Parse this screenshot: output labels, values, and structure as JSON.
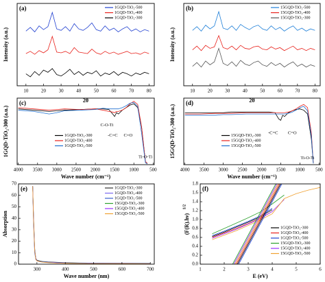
{
  "chart_data": [
    {
      "type": "line",
      "panel_label": "(a)",
      "xlabel": "2θ",
      "ylabel": "Intensity (a.u.)",
      "xlim": [
        5,
        83
      ],
      "ylim": [
        0,
        11
      ],
      "xticks": [
        10,
        20,
        30,
        40,
        50,
        60,
        70,
        80
      ],
      "legend": "upper right",
      "x": [
        10,
        12.5,
        15,
        17.5,
        20,
        22.5,
        25,
        27.5,
        30,
        32.5,
        35,
        37.5,
        40,
        42.5,
        45,
        47.5,
        50,
        52.5,
        55,
        57.5,
        60,
        62.5,
        65,
        67.5,
        70,
        72.5,
        75,
        77.5,
        80
      ],
      "series": [
        {
          "name": "1GQD-TiO₂-500",
          "color": "#1f3fd0",
          "values": [
            7.3,
            7.8,
            7.2,
            8.0,
            7.5,
            7.9,
            9.8,
            7.6,
            7.4,
            7.9,
            7.3,
            8.3,
            7.6,
            7.4,
            7.8,
            8.4,
            7.5,
            7.3,
            8.0,
            7.4,
            7.7,
            7.2,
            7.6,
            7.9,
            7.3,
            7.6,
            7.2,
            7.5,
            7.3
          ]
        },
        {
          "name": "1GQD-TiO₂-400",
          "color": "#e8201a",
          "values": [
            4.3,
            4.6,
            4.2,
            4.7,
            4.4,
            4.8,
            6.6,
            4.5,
            4.4,
            4.6,
            4.3,
            5.1,
            4.5,
            4.4,
            4.3,
            4.9,
            4.4,
            4.2,
            4.6,
            4.3,
            4.5,
            4.2,
            4.4,
            4.6,
            4.3,
            4.4,
            4.2,
            4.5,
            4.3
          ]
        },
        {
          "name": "1GQD-TiO₂-300",
          "color": "#000000",
          "values": [
            1.6,
            1.2,
            1.9,
            1.4,
            2.1,
            1.8,
            2.3,
            1.5,
            1.3,
            1.7,
            2.2,
            1.5,
            1.9,
            1.4,
            1.8,
            1.6,
            2.0,
            1.3,
            1.7,
            1.5,
            1.9,
            1.4,
            1.8,
            1.6,
            1.3,
            1.7,
            1.5,
            1.8,
            1.6
          ]
        }
      ]
    },
    {
      "type": "line",
      "panel_label": "(b)",
      "xlabel": "2θ",
      "ylabel": "Intensity (a.u.)",
      "xlim": [
        5,
        83
      ],
      "ylim": [
        0,
        11
      ],
      "xticks": [
        10,
        20,
        30,
        40,
        50,
        60,
        70,
        80
      ],
      "legend": "upper right",
      "x": [
        10,
        12.5,
        15,
        17.5,
        20,
        22.5,
        25,
        27.5,
        30,
        32.5,
        35,
        37.5,
        40,
        42.5,
        45,
        47.5,
        50,
        52.5,
        55,
        57.5,
        60,
        62.5,
        65,
        67.5,
        70,
        72.5,
        75,
        77.5,
        80
      ],
      "series": [
        {
          "name": "15GQD-TiO₂-500",
          "color": "#1e7fd8",
          "values": [
            7.4,
            7.9,
            7.3,
            8.1,
            7.6,
            8.0,
            9.9,
            7.7,
            7.5,
            8.0,
            7.4,
            8.2,
            7.8,
            7.5,
            7.9,
            8.1,
            7.6,
            7.4,
            8.0,
            7.5,
            7.8,
            7.3,
            7.7,
            8.0,
            7.4,
            7.7,
            7.3,
            7.6,
            7.4
          ]
        },
        {
          "name": "15GQD-TiO₂-400",
          "color": "#e8201a",
          "values": [
            4.8,
            5.3,
            4.7,
            5.4,
            5.0,
            5.2,
            6.7,
            5.1,
            4.9,
            5.3,
            4.8,
            5.4,
            5.0,
            4.9,
            5.2,
            5.3,
            4.9,
            4.8,
            5.2,
            4.9,
            5.1,
            4.7,
            5.0,
            5.3,
            4.8,
            5.0,
            4.7,
            5.0,
            4.8
          ]
        },
        {
          "name": "15GQD-TiO₂-300",
          "color": "#555555",
          "values": [
            2.6,
            3.1,
            2.5,
            3.3,
            2.8,
            3.2,
            5.0,
            3.0,
            2.7,
            3.2,
            2.6,
            3.4,
            2.9,
            2.7,
            3.1,
            3.3,
            2.8,
            2.6,
            3.1,
            2.7,
            3.0,
            2.5,
            2.9,
            3.2,
            2.6,
            2.9,
            2.5,
            2.8,
            2.6
          ]
        }
      ]
    },
    {
      "type": "line",
      "panel_label": "(c)",
      "xlabel": "Wave number (cm⁻¹)",
      "ylabel": "1GQD-TiO₂-300 (a.u.)",
      "xlim": [
        4030,
        470
      ],
      "ylim": [
        0,
        105
      ],
      "xticks": [
        4000,
        3500,
        3000,
        2500,
        2000,
        1500,
        1000,
        500
      ],
      "legend": "lower left",
      "x": [
        4000,
        3600,
        3200,
        3000,
        2800,
        2400,
        2000,
        1800,
        1650,
        1550,
        1500,
        1450,
        1400,
        1300,
        1200,
        1100,
        1000,
        900,
        800,
        700,
        650
      ],
      "series": [
        {
          "name": "1GQD-TiO₂-300",
          "color": "#000000",
          "values": [
            88,
            86,
            84,
            85,
            86,
            87,
            88,
            88,
            87,
            80,
            76,
            82,
            80,
            86,
            90,
            94,
            96,
            90,
            60,
            5,
            2
          ]
        },
        {
          "name": "1GQD-TiO₂-400",
          "color": "#e8201a",
          "values": [
            90,
            88,
            86,
            87,
            88,
            87,
            88,
            86,
            84,
            83,
            82,
            84,
            84,
            86,
            90,
            96,
            100,
            95,
            60,
            5,
            2
          ]
        },
        {
          "name": "1GQD-TiO₂-500",
          "color": "#1f6fd0",
          "values": [
            86,
            84,
            80,
            82,
            85,
            86,
            87,
            89,
            88,
            88,
            88,
            88,
            88,
            90,
            93,
            97,
            98,
            92,
            50,
            3,
            1
          ]
        }
      ],
      "annotations": [
        "C-O-Ti",
        "-C=C",
        "C=O",
        "Ti-O-Ti"
      ]
    },
    {
      "type": "line",
      "panel_label": "(d)",
      "xlabel": "Wave number (cm⁻¹)",
      "ylabel": "15GQD-TiO₂-300 (a.u.)",
      "xlim": [
        4030,
        470
      ],
      "ylim": [
        0,
        105
      ],
      "xticks": [
        4000,
        3500,
        3000,
        2500,
        2000,
        1500,
        1000,
        500
      ],
      "legend": "lower left",
      "x": [
        4000,
        3600,
        3200,
        3000,
        2800,
        2400,
        2000,
        1800,
        1650,
        1550,
        1500,
        1450,
        1400,
        1300,
        1200,
        1100,
        1000,
        900,
        800,
        700,
        650
      ],
      "series": [
        {
          "name": "15GQD-TiO₂-300",
          "color": "#000000",
          "values": [
            82,
            82,
            82,
            82,
            83,
            83,
            83,
            83,
            82,
            72,
            70,
            78,
            76,
            82,
            85,
            87,
            88,
            86,
            80,
            40,
            2
          ]
        },
        {
          "name": "15GQD-TiO₂-400",
          "color": "#e8201a",
          "values": [
            80,
            80,
            81,
            81,
            81,
            82,
            82,
            82,
            82,
            82,
            82,
            82,
            82,
            83,
            85,
            88,
            92,
            95,
            90,
            50,
            3
          ]
        },
        {
          "name": "15GQD-TiO₂-500",
          "color": "#1f6fd0",
          "values": [
            78,
            78,
            78,
            79,
            79,
            80,
            80,
            80,
            80,
            80,
            80,
            80,
            80,
            81,
            83,
            86,
            90,
            92,
            85,
            45,
            2
          ]
        }
      ],
      "annotations": [
        "-C=C",
        "C=O",
        "Ti-O-Ti"
      ]
    },
    {
      "type": "line",
      "panel_label": "(e)",
      "xlabel": "Wave number (nm)",
      "ylabel": "Absorption",
      "xlim": [
        235,
        714
      ],
      "ylim": [
        0,
        70
      ],
      "xticks": [
        300,
        400,
        500,
        600,
        700
      ],
      "yticks": [
        0,
        10,
        20,
        30,
        40,
        50,
        60,
        70
      ],
      "legend": "upper right",
      "x": [
        285,
        288,
        292,
        296,
        300,
        310,
        320,
        340,
        370,
        400,
        450,
        500,
        600,
        700
      ],
      "series": [
        {
          "name": "1GQD-TiO₂-300",
          "color": "#333333",
          "values": [
            68,
            40,
            12,
            5,
            3.5,
            2.8,
            2.4,
            2.0,
            1.6,
            1.3,
            1.0,
            0.9,
            0.8,
            0.7
          ]
        },
        {
          "name": "1GQD-TiO₂-400",
          "color": "#7b68ee",
          "values": [
            68,
            38,
            11,
            4.5,
            3.2,
            2.6,
            2.2,
            1.8,
            1.4,
            1.1,
            0.9,
            0.8,
            0.7,
            0.6
          ]
        },
        {
          "name": "1GQD-TiO₂-500",
          "color": "#3a5fcd",
          "values": [
            68,
            36,
            10,
            4,
            3,
            2.4,
            2.0,
            1.6,
            1.2,
            1.0,
            0.8,
            0.7,
            0.6,
            0.5
          ]
        },
        {
          "name": "15GQD-TiO₂-300",
          "color": "#2ca02c",
          "values": [
            68,
            42,
            14,
            5,
            3.2,
            2.5,
            2.0,
            1.5,
            1.1,
            0.9,
            0.7,
            0.6,
            0.5,
            0.5
          ]
        },
        {
          "name": "15GQD-TiO₂-400",
          "color": "#9b30ff",
          "values": [
            68,
            41,
            13,
            4.8,
            3.0,
            2.3,
            1.8,
            1.4,
            1.0,
            0.8,
            0.6,
            0.5,
            0.5,
            0.4
          ]
        },
        {
          "name": "15GQD-TiO₂-500",
          "color": "#f0a030",
          "values": [
            68,
            39,
            12,
            4.2,
            2.8,
            2.1,
            1.7,
            1.3,
            0.9,
            0.7,
            0.5,
            0.4,
            0.4,
            0.3
          ]
        }
      ]
    },
    {
      "type": "line",
      "panel_label": "(f)",
      "xlabel": "E (eV)",
      "ylabel": "(F(R).hν)",
      "ylabel_sup": "1/2",
      "xlim": [
        1,
        6
      ],
      "ylim": [
        0,
        1.8
      ],
      "xticks": [
        1,
        2,
        3,
        4,
        5,
        6
      ],
      "yticks": [
        {
          "value": 0,
          "label": "0.0"
        },
        0.2,
        0.4,
        0.6,
        0.8,
        {
          "value": 1,
          "label": "1.0"
        },
        1.2,
        1.4,
        1.6,
        1.8
      ],
      "legend": "lower right",
      "x": [
        1.5,
        2,
        2.5,
        3,
        3.5,
        4,
        4.5,
        5,
        5.5,
        6
      ],
      "series": [
        {
          "name": "1GQD-TiO₂-300",
          "color": "#000000",
          "values": [
            0.62,
            0.72,
            0.83,
            0.94,
            1.06,
            1.22,
            null,
            null,
            null,
            null
          ]
        },
        {
          "name": "1GQD-TiO₂-400",
          "color": "#e8201a",
          "values": [
            0.6,
            0.7,
            0.8,
            0.91,
            1.03,
            1.18,
            null,
            null,
            null,
            null
          ]
        },
        {
          "name": "1GQD-TiO₂-500",
          "color": "#1f3fd0",
          "values": [
            0.64,
            0.74,
            0.85,
            0.96,
            1.08,
            1.25,
            null,
            null,
            null,
            null
          ]
        },
        {
          "name": "15GQD-TiO₂-300",
          "color": "#2ca02c",
          "values": [
            0.68,
            0.8,
            0.92,
            1.04,
            1.17,
            1.35,
            1.55,
            null,
            null,
            null
          ]
        },
        {
          "name": "15GQD-TiO₂-400",
          "color": "#9b30ff",
          "values": [
            0.58,
            0.68,
            0.78,
            0.9,
            1.02,
            1.18,
            1.45,
            null,
            null,
            null
          ]
        },
        {
          "name": "15GQD-TiO₂-500",
          "color": "#f0a030",
          "values": [
            0.55,
            0.65,
            0.75,
            0.87,
            0.99,
            1.13,
            1.47,
            1.58,
            1.66,
            1.72
          ]
        }
      ],
      "fits": [
        {
          "color": "#000000",
          "x": [
            2.55,
            4.35
          ],
          "values": [
            0,
            1.8
          ]
        },
        {
          "color": "#e8201a",
          "x": [
            2.5,
            4.3
          ],
          "values": [
            0,
            1.8
          ]
        },
        {
          "color": "#1f3fd0",
          "x": [
            2.6,
            4.4
          ],
          "values": [
            0,
            1.8
          ]
        },
        {
          "color": "#2ca02c",
          "x": [
            2.35,
            4.15
          ],
          "values": [
            0,
            1.8
          ]
        },
        {
          "color": "#9b30ff",
          "x": [
            2.4,
            4.2
          ],
          "values": [
            0,
            1.8
          ]
        },
        {
          "color": "#f0a030",
          "x": [
            2.45,
            4.25
          ],
          "values": [
            0,
            1.8
          ]
        }
      ]
    }
  ]
}
